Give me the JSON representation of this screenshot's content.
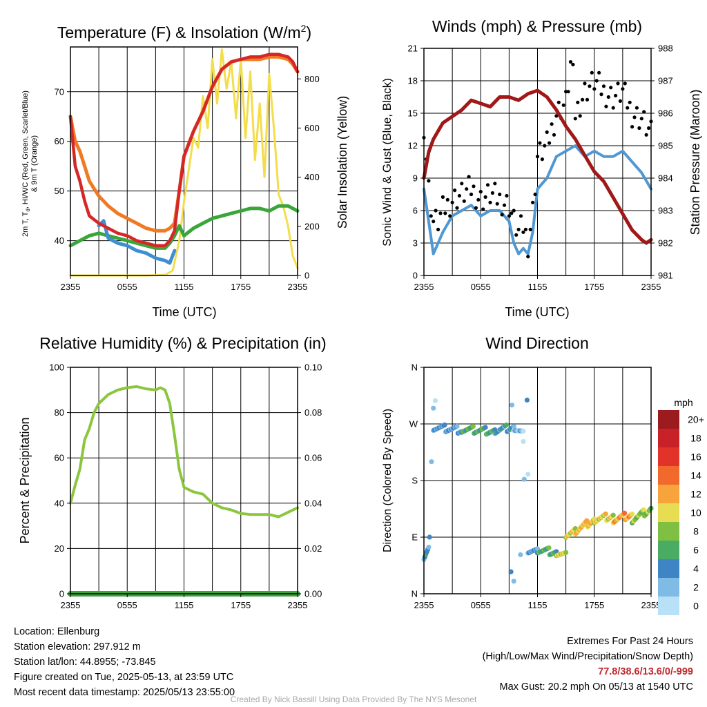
{
  "charts": {
    "temperature": {
      "title": "Temperature (F) & Insolation (W/m",
      "title_sup": "2",
      "title_tail": ")",
      "ylabel_line1": "2m T, T",
      "ylabel_sub": "d",
      "ylabel_line1_tail": ", HI/WC (Red, Green, Scarlet/Blue)",
      "ylabel_line2": "& 9m T (Orange)",
      "y2label": "Solar Insolation (Yellow)",
      "xlabel": "Time (UTC)"
    },
    "winds": {
      "title": "Winds (mph) & Pressure (mb)",
      "ylabel": "Sonic Wind & Gust (Blue, Black)",
      "y2label": "Station Pressure (Maroon)",
      "xlabel": "Time (UTC)"
    },
    "humidity": {
      "title": "Relative Humidity (%) & Precipitation (in)",
      "ylabel": "Percent & Precipitation"
    },
    "direction": {
      "title": "Wind Direction",
      "ylabel": "Direction (Colored By Speed)",
      "legend_title": "mph"
    }
  },
  "chart_data": [
    {
      "id": "temperature",
      "type": "line",
      "x_ticks": [
        "2355",
        "0555",
        "1155",
        "1755",
        "2355"
      ],
      "x_range_hours": [
        0,
        24
      ],
      "ylim": [
        33,
        79
      ],
      "y_ticks": [
        40,
        50,
        60,
        70
      ],
      "y2lim": [
        0,
        930
      ],
      "y2_ticks": [
        0,
        200,
        400,
        600,
        800
      ],
      "colors": {
        "temp": "#d62728",
        "temp9m": "#f07a24",
        "dewpoint": "#3aa63a",
        "windchill": "#3f8fd0",
        "solar": "#f4dd4a"
      },
      "series": [
        {
          "key": "temp",
          "hours": [
            0,
            0.5,
            1,
            1.5,
            2,
            3,
            4,
            5,
            6,
            7,
            8,
            9,
            10,
            10.5,
            11,
            11.5,
            12,
            13,
            14,
            15,
            16,
            17,
            18,
            19,
            20,
            21,
            22,
            23,
            23.5,
            24
          ],
          "values": [
            65,
            55,
            52,
            48,
            45,
            43.5,
            42.5,
            41.5,
            41,
            40,
            39.5,
            39,
            39,
            40,
            42,
            50,
            57,
            62,
            66,
            71,
            74.5,
            76,
            76.5,
            77,
            77,
            77.5,
            77.5,
            77,
            76,
            74
          ]
        },
        {
          "key": "temp9m",
          "hours": [
            0,
            0.5,
            1,
            1.5,
            2,
            3,
            4,
            5,
            6,
            7,
            8,
            9,
            10,
            10.5,
            11,
            11.5,
            12,
            13,
            14,
            15,
            16,
            17,
            18,
            19,
            20,
            21,
            22,
            23,
            23.5,
            24
          ],
          "values": [
            65,
            60,
            58,
            55,
            52,
            49,
            47,
            45.5,
            44.5,
            43.5,
            42.5,
            42,
            42,
            42.5,
            43.5,
            50,
            57,
            62,
            66,
            71,
            74.5,
            76,
            76.5,
            76.5,
            76.5,
            77,
            77,
            76.5,
            75.5,
            74
          ]
        },
        {
          "key": "dewpoint",
          "hours": [
            0,
            1,
            2,
            3,
            4,
            5,
            6,
            7,
            8,
            9,
            10,
            10.5,
            11,
            11.5,
            12,
            13,
            14,
            15,
            16,
            17,
            18,
            19,
            20,
            21,
            22,
            23,
            24
          ],
          "values": [
            39,
            40,
            41,
            41.5,
            41,
            40.5,
            40,
            39.5,
            39,
            38.5,
            38.5,
            39.5,
            41,
            43,
            41,
            42.5,
            43.5,
            44.5,
            45,
            45.5,
            46,
            46.5,
            46.5,
            46,
            47,
            47,
            46
          ]
        },
        {
          "key": "windchill",
          "hours": [
            3,
            3.5,
            4,
            5,
            6,
            7,
            8,
            9,
            10,
            10.5,
            11
          ],
          "values": [
            43,
            44,
            40.5,
            39.5,
            39,
            38,
            37.5,
            36.5,
            36,
            35.5,
            38
          ]
        },
        {
          "key": "solar",
          "hours": [
            0,
            8,
            10,
            10.8,
            11.5,
            12,
            13,
            13.5,
            14,
            14.5,
            15,
            15.5,
            16,
            16.5,
            17,
            17.5,
            18,
            18.5,
            19,
            19.5,
            20,
            20.5,
            21,
            21.5,
            22,
            22.5,
            23,
            23.5,
            24
          ],
          "values": [
            0,
            0,
            2,
            20,
            140,
            300,
            560,
            520,
            730,
            600,
            880,
            700,
            920,
            760,
            870,
            640,
            880,
            560,
            830,
            470,
            700,
            400,
            820,
            600,
            330,
            280,
            200,
            80,
            30
          ],
          "axis": "y2"
        }
      ]
    },
    {
      "id": "winds",
      "type": "line",
      "x_ticks": [
        "2355",
        "0555",
        "1155",
        "1755",
        "2355"
      ],
      "x_range_hours": [
        0,
        24
      ],
      "ylim": [
        0,
        21
      ],
      "y_ticks": [
        0,
        3,
        6,
        9,
        12,
        15,
        18,
        21
      ],
      "y2lim": [
        981,
        988
      ],
      "y2_ticks": [
        981,
        982,
        983,
        984,
        985,
        986,
        987,
        988
      ],
      "colors": {
        "wind": "#4f98d4",
        "gust": "#000000",
        "pressure": "#a01818"
      },
      "series": [
        {
          "key": "wind",
          "hours": [
            0,
            0.5,
            1,
            1.5,
            2,
            3,
            4,
            5,
            6,
            7,
            8,
            9,
            9.5,
            10,
            10.5,
            11,
            11.5,
            12,
            13,
            14,
            15,
            16,
            17,
            18,
            19,
            20,
            21,
            22,
            23,
            24
          ],
          "values": [
            8,
            5,
            2,
            3,
            4,
            5.5,
            6,
            6.5,
            5.5,
            6,
            6,
            5,
            3,
            2,
            2.5,
            2,
            4,
            8,
            9,
            11,
            11.5,
            12,
            11,
            11.5,
            11,
            11,
            11.5,
            10.5,
            9.5,
            8
          ]
        },
        {
          "key": "gust",
          "hours": [
            0,
            0.5,
            1,
            1.5,
            2,
            3,
            4,
            5,
            6,
            7,
            8,
            9,
            9.5,
            10,
            10.5,
            11,
            11.5,
            12,
            13,
            14,
            15,
            15.6,
            16,
            17,
            18,
            19,
            20,
            21,
            22,
            23,
            24
          ],
          "values": [
            14,
            8,
            5,
            5,
            6,
            7,
            7.5,
            8,
            7,
            7.5,
            7,
            6.5,
            5,
            4,
            4.5,
            3,
            6,
            11,
            12,
            15,
            16,
            20.2,
            15,
            17,
            18,
            17,
            16.5,
            17,
            15,
            14.5,
            13
          ],
          "style": "dots"
        },
        {
          "key": "pressure",
          "hours": [
            0,
            0.5,
            1,
            2,
            3,
            4,
            5,
            6,
            7,
            8,
            9,
            10,
            11,
            12,
            13,
            14,
            15,
            16,
            17,
            18,
            19,
            20,
            21,
            22,
            23,
            23.5,
            24
          ],
          "values": [
            984,
            984.8,
            985.2,
            985.7,
            985.9,
            986.1,
            986.4,
            986.3,
            986.2,
            986.5,
            986.5,
            986.4,
            986.6,
            986.7,
            986.5,
            986.1,
            985.6,
            985.2,
            984.7,
            984.2,
            983.9,
            983.4,
            982.9,
            982.4,
            982.1,
            982.0,
            982.1
          ],
          "axis": "y2"
        }
      ]
    },
    {
      "id": "humidity",
      "type": "line",
      "x_ticks": [
        "2355",
        "0555",
        "1155",
        "1755",
        "2355"
      ],
      "x_range_hours": [
        0,
        24
      ],
      "ylim": [
        0,
        100
      ],
      "y_ticks": [
        0,
        20,
        40,
        60,
        80,
        100
      ],
      "y2lim": [
        0,
        0.1
      ],
      "y2_ticks": [
        "0.00",
        "0.02",
        "0.04",
        "0.06",
        "0.08",
        "0.10"
      ],
      "colors": {
        "rh": "#8cc63f",
        "precip": "#3aa63a"
      },
      "series": [
        {
          "key": "rh",
          "hours": [
            0,
            0.5,
            1,
            1.5,
            2,
            2.5,
            3,
            4,
            5,
            6,
            7,
            8,
            9,
            9.5,
            10,
            10.5,
            11,
            11.5,
            12,
            13,
            14,
            15,
            16,
            17,
            18,
            19,
            20,
            21,
            22,
            23,
            24
          ],
          "values": [
            40,
            48,
            55,
            68,
            73,
            80,
            84,
            88,
            90,
            91,
            91.5,
            90.5,
            90,
            91,
            90,
            84,
            70,
            55,
            47,
            45,
            44,
            40,
            38,
            37,
            35.5,
            35,
            35,
            35,
            34,
            36,
            38
          ]
        },
        {
          "key": "precip",
          "hours": [
            0,
            24
          ],
          "values": [
            0,
            0
          ],
          "axis": "y2"
        }
      ]
    },
    {
      "id": "direction",
      "type": "scatter",
      "x_ticks": [
        "2355",
        "0555",
        "1155",
        "1755",
        "2355"
      ],
      "x_range_hours": [
        0,
        24
      ],
      "y_ticks": [
        "N",
        "E",
        "S",
        "W",
        "N"
      ],
      "ylim": [
        0,
        360
      ],
      "legend_labels": [
        "20+",
        "18",
        "16",
        "14",
        "12",
        "10",
        "8",
        "6",
        "4",
        "2",
        "0"
      ],
      "legend_colors": [
        "#9b1b1e",
        "#c82127",
        "#e2332a",
        "#f16a2c",
        "#f7a43d",
        "#e8dd52",
        "#7fbf41",
        "#4aac62",
        "#3f85c6",
        "#80bbe6",
        "#b8e1f7"
      ],
      "segments": [
        {
          "h0": 0,
          "h1": 0.5,
          "d0": 60,
          "d1": 75,
          "speed": 4
        },
        {
          "h0": 1,
          "h1": 4,
          "d0": 265,
          "d1": 260,
          "speed": 3
        },
        {
          "h0": 4,
          "h1": 7.5,
          "d0": 262,
          "d1": 258,
          "speed": 6
        },
        {
          "h0": 7.5,
          "h1": 9.5,
          "d0": 260,
          "d1": 265,
          "speed": 4
        },
        {
          "h0": 9.5,
          "h1": 10.5,
          "d0": 265,
          "d1": 255,
          "speed": 2
        },
        {
          "h0": 11,
          "h1": 12,
          "d0": 70,
          "d1": 68,
          "speed": 3
        },
        {
          "h0": 12,
          "h1": 14,
          "d0": 70,
          "d1": 66,
          "speed": 6
        },
        {
          "h0": 14,
          "h1": 15,
          "d0": 66,
          "d1": 62,
          "speed": 10
        },
        {
          "h0": 15,
          "h1": 16,
          "d0": 95,
          "d1": 100,
          "speed": 10
        },
        {
          "h0": 16,
          "h1": 18,
          "d0": 100,
          "d1": 118,
          "speed": 11
        },
        {
          "h0": 18,
          "h1": 20,
          "d0": 118,
          "d1": 124,
          "speed": 10
        },
        {
          "h0": 20,
          "h1": 22,
          "d0": 118,
          "d1": 126,
          "speed": 12
        },
        {
          "h0": 22,
          "h1": 24,
          "d0": 118,
          "d1": 135,
          "speed": 8
        }
      ],
      "outliers": [
        {
          "h": 0.8,
          "d": 210,
          "speed": 1
        },
        {
          "h": 1,
          "d": 295,
          "speed": 1
        },
        {
          "h": 1.2,
          "d": 307,
          "speed": 0
        },
        {
          "h": 0.6,
          "d": 90,
          "speed": 3
        },
        {
          "h": 9.3,
          "d": 300,
          "speed": 2
        },
        {
          "h": 9.2,
          "d": 35,
          "speed": 3
        },
        {
          "h": 9.5,
          "d": 20,
          "speed": 2
        },
        {
          "h": 10.5,
          "d": 242,
          "speed": 0
        },
        {
          "h": 10.6,
          "d": 182,
          "speed": 1
        },
        {
          "h": 10.9,
          "d": 308,
          "speed": 3
        },
        {
          "h": 11,
          "d": 190,
          "speed": 0
        },
        {
          "h": 10.2,
          "d": 62,
          "speed": 1
        }
      ]
    }
  ],
  "info": {
    "location": "Location: Ellenburg",
    "elevation": "Station elevation: 297.912 m",
    "latlon": "Station lat/lon: 44.8955; -73.845",
    "created": "Figure created on Tue, 2025-05-13, at 23:59 UTC",
    "recent": "Most recent data timestamp: 2025/05/13 23:55:00"
  },
  "extremes": {
    "title": "Extremes For Past 24 Hours",
    "subtitle": "(High/Low/Max Wind/Precipitation/Snow Depth)",
    "values": "77.8/38.6/13.6/0/-999",
    "gust": "Max Gust: 20.2 mph On 05/13 at 1540 UTC"
  },
  "credit": "Created By Nick Bassill Using Data Provided By The NYS Mesonet"
}
